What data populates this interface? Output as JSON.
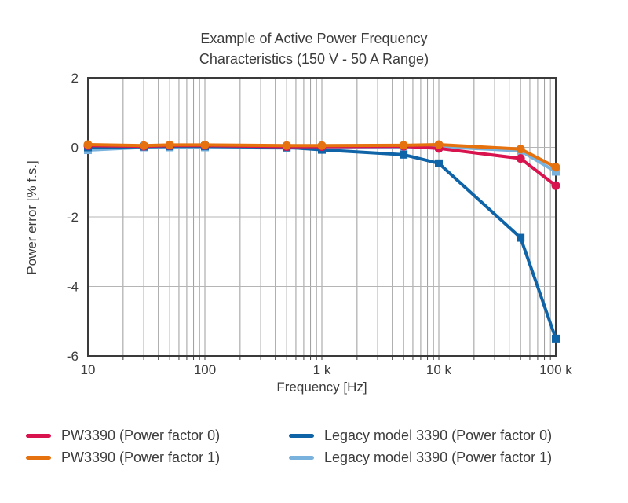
{
  "title": {
    "line1": "Example of Active Power Frequency",
    "line2": "Characteristics (150 V - 50 A Range)"
  },
  "chart_data": {
    "type": "line",
    "x_scale": "log",
    "x": [
      10,
      30,
      50,
      100,
      500,
      1000,
      5000,
      10000,
      50000,
      100000
    ],
    "xlim": [
      10,
      100000
    ],
    "ylim": [
      -6,
      2
    ],
    "x_ticks": [
      {
        "value": 10,
        "label": "10"
      },
      {
        "value": 100,
        "label": "100"
      },
      {
        "value": 1000,
        "label": "1 k"
      },
      {
        "value": 10000,
        "label": "10 k"
      },
      {
        "value": 100000,
        "label": "100 k"
      }
    ],
    "y_ticks": [
      2,
      0,
      -2,
      -4,
      -6
    ],
    "xlabel": "Frequency [Hz]",
    "ylabel": "Power error [% f.s.]",
    "grid": true,
    "legend_position": "bottom",
    "series": [
      {
        "name": "PW3390 (Power factor 0)",
        "color": "#d9134e",
        "marker": "circle",
        "values": [
          0.05,
          0.03,
          0.05,
          0.05,
          0.02,
          0.02,
          0.03,
          -0.03,
          -0.32,
          -1.1
        ]
      },
      {
        "name": "PW3390 (Power factor 1)",
        "color": "#e5720f",
        "marker": "circle",
        "values": [
          0.08,
          0.05,
          0.07,
          0.07,
          0.05,
          0.05,
          0.06,
          0.08,
          -0.05,
          -0.57
        ]
      },
      {
        "name": "Legacy model 3390 (Power factor 0)",
        "color": "#0f64a8",
        "marker": "square",
        "values": [
          0,
          0.02,
          0.03,
          0.03,
          0,
          -0.07,
          -0.21,
          -0.46,
          -2.6,
          -5.5
        ]
      },
      {
        "name": "Legacy model 3390 (Power factor 1)",
        "color": "#79b2dc",
        "marker": "square",
        "values": [
          -0.08,
          0,
          0,
          0,
          -0.02,
          -0.02,
          0,
          0.02,
          -0.1,
          -0.7
        ]
      }
    ],
    "draw_order": [
      3,
      2,
      0,
      1
    ]
  },
  "colors": {
    "frame": "#3a3a3a",
    "grid_vertical": "#9c9c9c",
    "grid_horizontal": "#b5b5b5",
    "text": "#3c3c3c",
    "background": "#ffffff"
  }
}
